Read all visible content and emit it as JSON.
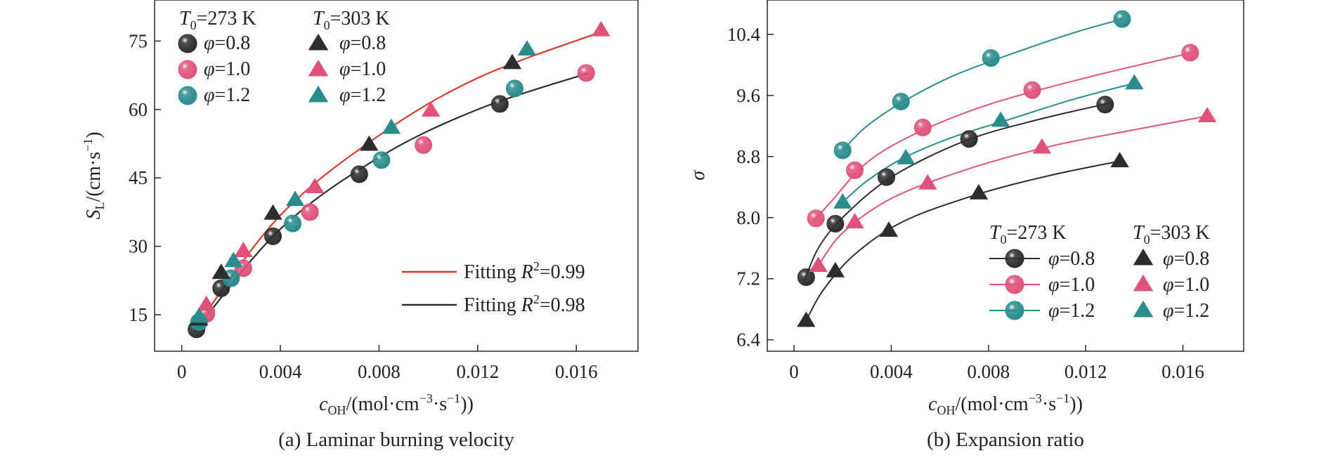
{
  "chart_data": [
    {
      "id": "a",
      "type": "scatter",
      "caption": "(a) Laminar burning velocity",
      "xlabel": "c_OH/(mol·cm⁻³·s⁻¹))",
      "xlabel_parts": {
        "sym": "c",
        "sub": "OH",
        "pre": "/(mol·cm",
        "e1": "−3",
        "mid": "·s",
        "e2": "−1",
        "post": "))"
      },
      "ylabel": "S_L/(cm·s⁻¹)",
      "ylabel_parts": {
        "sym": "S",
        "sub": "L",
        "pre": "/(cm·s",
        "e1": "−1",
        "post": ")"
      },
      "xlim": [
        -0.0011,
        0.0185
      ],
      "ylim": [
        7,
        84
      ],
      "xticks": [
        0,
        0.004,
        0.008,
        0.012,
        0.016
      ],
      "xtick_labels": [
        "0",
        "0.004",
        "0.008",
        "0.012",
        "0.016"
      ],
      "yticks": [
        15,
        30,
        45,
        60,
        75
      ],
      "ytick_labels": [
        "15",
        "30",
        "45",
        "60",
        "75"
      ],
      "legend_placement": "top-left",
      "legend_headers": [
        {
          "sym": "T",
          "sub": "0",
          "rest": "=273 K"
        },
        {
          "sym": "T",
          "sub": "0",
          "rest": "=303 K"
        }
      ],
      "series": [
        {
          "name": "φ=0.8",
          "group": "273",
          "marker": "sphere",
          "color": "#2d2d2d",
          "points": [
            [
              0.0006,
              11.8
            ],
            [
              0.0016,
              20.8
            ],
            [
              0.0037,
              32.2
            ],
            [
              0.0072,
              45.8
            ],
            [
              0.0129,
              61.2
            ]
          ]
        },
        {
          "name": "φ=1.0",
          "group": "273",
          "marker": "sphere",
          "color": "#e0527a",
          "points": [
            [
              0.001,
              15.2
            ],
            [
              0.0025,
              25.2
            ],
            [
              0.0052,
              37.5
            ],
            [
              0.0098,
              52.2
            ],
            [
              0.0164,
              68.0
            ]
          ]
        },
        {
          "name": "φ=1.2",
          "group": "273",
          "marker": "sphere",
          "color": "#2a8c8c",
          "points": [
            [
              0.0007,
              13.4
            ],
            [
              0.002,
              23.0
            ],
            [
              0.0045,
              35.0
            ],
            [
              0.0081,
              48.9
            ],
            [
              0.0135,
              64.6
            ]
          ]
        },
        {
          "name": "φ=0.8",
          "group": "303",
          "marker": "triangle",
          "color": "#2d2d2d",
          "points": [
            [
              0.0007,
              14.0
            ],
            [
              0.0016,
              24.2
            ],
            [
              0.0037,
              37.2
            ],
            [
              0.0076,
              52.3
            ],
            [
              0.0134,
              70.2
            ]
          ]
        },
        {
          "name": "φ=1.0",
          "group": "303",
          "marker": "triangle",
          "color": "#e0527a",
          "points": [
            [
              0.001,
              17.2
            ],
            [
              0.0025,
              29.0
            ],
            [
              0.0054,
              43.0
            ],
            [
              0.0101,
              59.8
            ],
            [
              0.017,
              77.4
            ]
          ]
        },
        {
          "name": "φ=1.2",
          "group": "303",
          "marker": "triangle",
          "color": "#2a8c8c",
          "points": [
            [
              0.0007,
              14.6
            ],
            [
              0.0021,
              26.8
            ],
            [
              0.0046,
              40.2
            ],
            [
              0.0085,
              56.0
            ],
            [
              0.014,
              73.2
            ]
          ]
        }
      ],
      "fits": [
        {
          "label_pre": "Fitting ",
          "label_sym": "R",
          "label_sup": "2",
          "label_post": "=0.99",
          "color": "#d63a2f",
          "x_range": [
            0.0005,
            0.017
          ],
          "points": [
            [
              0.0005,
              11.8
            ],
            [
              0.004,
              36.8
            ],
            [
              0.008,
              54.3
            ],
            [
              0.012,
              66.9
            ],
            [
              0.017,
              77.0
            ]
          ]
        },
        {
          "label_pre": "Fitting ",
          "label_sym": "R",
          "label_sup": "2",
          "label_post": "=0.98",
          "color": "#2d2d2d",
          "x_range": [
            0.0005,
            0.0165
          ],
          "points": [
            [
              0.0005,
              11.2
            ],
            [
              0.004,
              33.8
            ],
            [
              0.008,
              49.5
            ],
            [
              0.012,
              60.0
            ],
            [
              0.0165,
              68.0
            ]
          ]
        }
      ]
    },
    {
      "id": "b",
      "type": "scatter",
      "caption": "(b) Expansion ratio",
      "xlabel": "c_OH/(mol·cm⁻³·s⁻¹))",
      "xlabel_parts": {
        "sym": "c",
        "sub": "OH",
        "pre": "/(mol·cm",
        "e1": "−3",
        "mid": "·s",
        "e2": "−1",
        "post": "))"
      },
      "ylabel": "σ",
      "xlim": [
        -0.0011,
        0.0185
      ],
      "ylim": [
        6.25,
        10.85
      ],
      "xticks": [
        0,
        0.004,
        0.008,
        0.012,
        0.016
      ],
      "xtick_labels": [
        "0",
        "0.004",
        "0.008",
        "0.012",
        "0.016"
      ],
      "yticks": [
        6.4,
        7.2,
        8.0,
        8.8,
        9.6,
        10.4
      ],
      "ytick_labels": [
        "6.4",
        "7.2",
        "8.0",
        "8.8",
        "9.6",
        "10.4"
      ],
      "legend_placement": "bottom-right",
      "legend_headers": [
        {
          "sym": "T",
          "sub": "0",
          "rest": "=273 K"
        },
        {
          "sym": "T",
          "sub": "0",
          "rest": "=303 K"
        }
      ],
      "series": [
        {
          "name": "φ=0.8",
          "group": "273",
          "marker": "sphere",
          "color": "#2d2d2d",
          "points": [
            [
              0.0005,
              7.22
            ],
            [
              0.0017,
              7.92
            ],
            [
              0.0038,
              8.53
            ],
            [
              0.0072,
              9.03
            ],
            [
              0.0128,
              9.48
            ]
          ],
          "curve": [
            [
              0.0004,
              7.15
            ],
            [
              0.001,
              7.6
            ],
            [
              0.002,
              8.0
            ],
            [
              0.004,
              8.53
            ],
            [
              0.007,
              9.0
            ],
            [
              0.01,
              9.28
            ],
            [
              0.013,
              9.5
            ]
          ]
        },
        {
          "name": "φ=1.0",
          "group": "273",
          "marker": "sphere",
          "color": "#e0527a",
          "points": [
            [
              0.0009,
              7.99
            ],
            [
              0.0025,
              8.62
            ],
            [
              0.0053,
              9.18
            ],
            [
              0.0098,
              9.67
            ],
            [
              0.0163,
              10.16
            ]
          ],
          "curve": [
            [
              0.0008,
              7.95
            ],
            [
              0.0015,
              8.2
            ],
            [
              0.003,
              8.72
            ],
            [
              0.005,
              9.1
            ],
            [
              0.008,
              9.48
            ],
            [
              0.012,
              9.83
            ],
            [
              0.0165,
              10.17
            ]
          ]
        },
        {
          "name": "φ=1.2",
          "group": "273",
          "marker": "sphere",
          "color": "#2a8c8c",
          "points": [
            [
              0.002,
              8.88
            ],
            [
              0.0044,
              9.52
            ],
            [
              0.0081,
              10.09
            ],
            [
              0.0135,
              10.6
            ]
          ],
          "curve": [
            [
              0.002,
              8.88
            ],
            [
              0.003,
              9.2
            ],
            [
              0.0045,
              9.52
            ],
            [
              0.0065,
              9.85
            ],
            [
              0.009,
              10.15
            ],
            [
              0.0115,
              10.42
            ],
            [
              0.0135,
              10.6
            ]
          ]
        },
        {
          "name": "φ=0.8",
          "group": "303",
          "marker": "triangle",
          "color": "#2d2d2d",
          "points": [
            [
              0.0005,
              6.65
            ],
            [
              0.0017,
              7.3
            ],
            [
              0.0039,
              7.83
            ],
            [
              0.0076,
              8.32
            ],
            [
              0.0134,
              8.74
            ]
          ],
          "curve": [
            [
              0.0005,
              6.65
            ],
            [
              0.0012,
              7.05
            ],
            [
              0.0025,
              7.52
            ],
            [
              0.0045,
              7.95
            ],
            [
              0.0075,
              8.3
            ],
            [
              0.0105,
              8.55
            ],
            [
              0.0134,
              8.74
            ]
          ]
        },
        {
          "name": "φ=1.0",
          "group": "303",
          "marker": "triangle",
          "color": "#e0527a",
          "points": [
            [
              0.001,
              7.37
            ],
            [
              0.0025,
              7.94
            ],
            [
              0.0055,
              8.45
            ],
            [
              0.0102,
              8.92
            ],
            [
              0.017,
              9.33
            ]
          ],
          "curve": [
            [
              0.001,
              7.37
            ],
            [
              0.002,
              7.8
            ],
            [
              0.004,
              8.25
            ],
            [
              0.007,
              8.62
            ],
            [
              0.0105,
              8.93
            ],
            [
              0.014,
              9.15
            ],
            [
              0.017,
              9.33
            ]
          ]
        },
        {
          "name": "φ=1.2",
          "group": "303",
          "marker": "triangle",
          "color": "#2a8c8c",
          "points": [
            [
              0.002,
              8.2
            ],
            [
              0.0046,
              8.78
            ],
            [
              0.0085,
              9.27
            ],
            [
              0.014,
              9.76
            ]
          ],
          "curve": [
            [
              0.002,
              8.2
            ],
            [
              0.003,
              8.48
            ],
            [
              0.0045,
              8.78
            ],
            [
              0.0065,
              9.05
            ],
            [
              0.009,
              9.3
            ],
            [
              0.0115,
              9.55
            ],
            [
              0.014,
              9.76
            ]
          ]
        }
      ]
    }
  ]
}
